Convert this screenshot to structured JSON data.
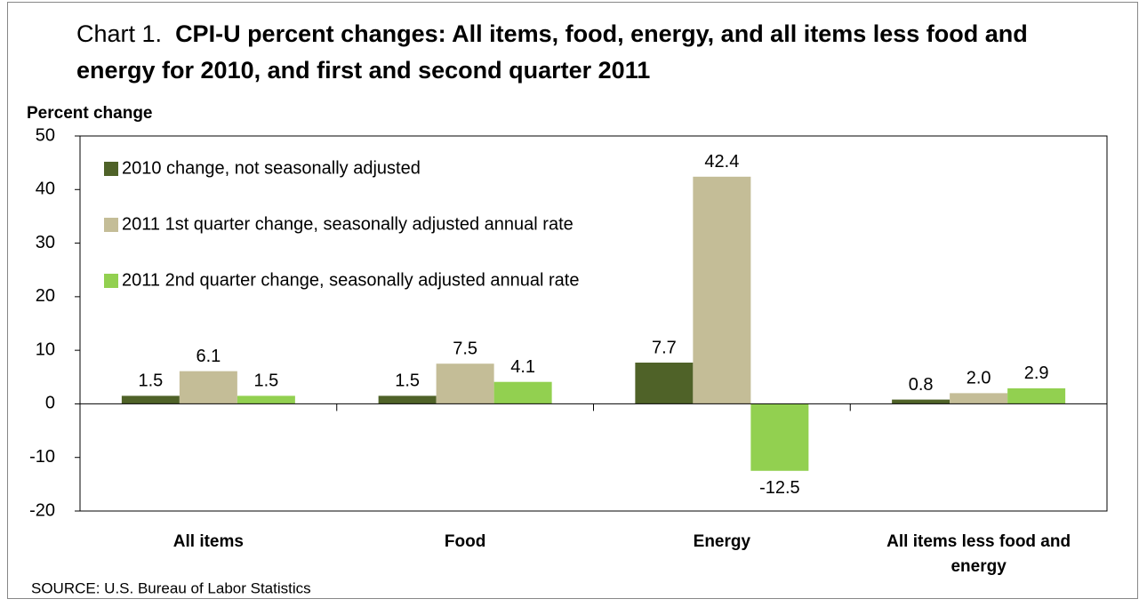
{
  "chart_data": {
    "type": "bar",
    "title_prefix": "Chart 1.",
    "title": "CPI-U percent changes: All items, food, energy, and all items less food and energy for 2010, and first and second quarter 2011",
    "y_label": "Percent change",
    "source": "SOURCE: U.S. Bureau of Labor Statistics",
    "categories": [
      "All items",
      "Food",
      "Energy",
      "All items less food and energy"
    ],
    "series": [
      {
        "name": "2010 change, not seasonally adjusted",
        "color": "#4f6228",
        "values": [
          1.5,
          1.5,
          7.7,
          0.8
        ],
        "value_labels": [
          "1.5",
          "1.5",
          "7.7",
          "0.8"
        ]
      },
      {
        "name": "2011 1st quarter change, seasonally adjusted annual rate",
        "color": "#c4bd97",
        "values": [
          6.1,
          7.5,
          42.4,
          2.0
        ],
        "value_labels": [
          "6.1",
          "7.5",
          "42.4",
          "2.0"
        ]
      },
      {
        "name": "2011 2nd quarter change, seasonally adjusted annual rate",
        "color": "#92d050",
        "values": [
          1.5,
          4.1,
          -12.5,
          2.9
        ],
        "value_labels": [
          "1.5",
          "4.1",
          "-12.5",
          "2.9"
        ]
      }
    ],
    "ylim": [
      -20,
      50
    ],
    "yticks": [
      -20,
      -10,
      0,
      10,
      20,
      30,
      40,
      50
    ],
    "legend": "upper left",
    "grid": false
  }
}
